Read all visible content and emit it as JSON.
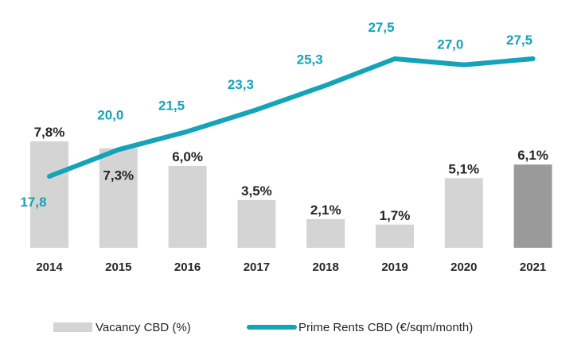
{
  "chart_data": {
    "type": "bar+line",
    "title": "",
    "categories": [
      "2014",
      "2015",
      "2016",
      "2017",
      "2018",
      "2019",
      "2020",
      "2021"
    ],
    "series": [
      {
        "name": "Vacancy CBD (%)",
        "kind": "bar",
        "values": [
          7.8,
          7.3,
          6.0,
          3.5,
          2.1,
          1.7,
          5.1,
          6.1
        ],
        "labels": [
          "7,8%",
          "7,3%",
          "6,0%",
          "3,5%",
          "2,1%",
          "1,7%",
          "5,1%",
          "6,1%"
        ],
        "color": "#d4d4d4",
        "highlight_color": "#9a9a9a",
        "highlight_index": 7,
        "ylim": [
          0,
          10
        ]
      },
      {
        "name": "Prime Rents CBD (€/sqm/month)",
        "kind": "line",
        "values": [
          17.8,
          20.0,
          21.5,
          23.3,
          25.3,
          27.5,
          27.0,
          27.5
        ],
        "labels": [
          "17,8",
          "20,0",
          "21,5",
          "23,3",
          "25,3",
          "27,5",
          "27,0",
          "27,5"
        ],
        "color": "#14a3b8",
        "ylim": [
          10,
          30
        ]
      }
    ],
    "xlabel": "",
    "ylabel": "",
    "grid": false,
    "legend_position": "bottom"
  }
}
